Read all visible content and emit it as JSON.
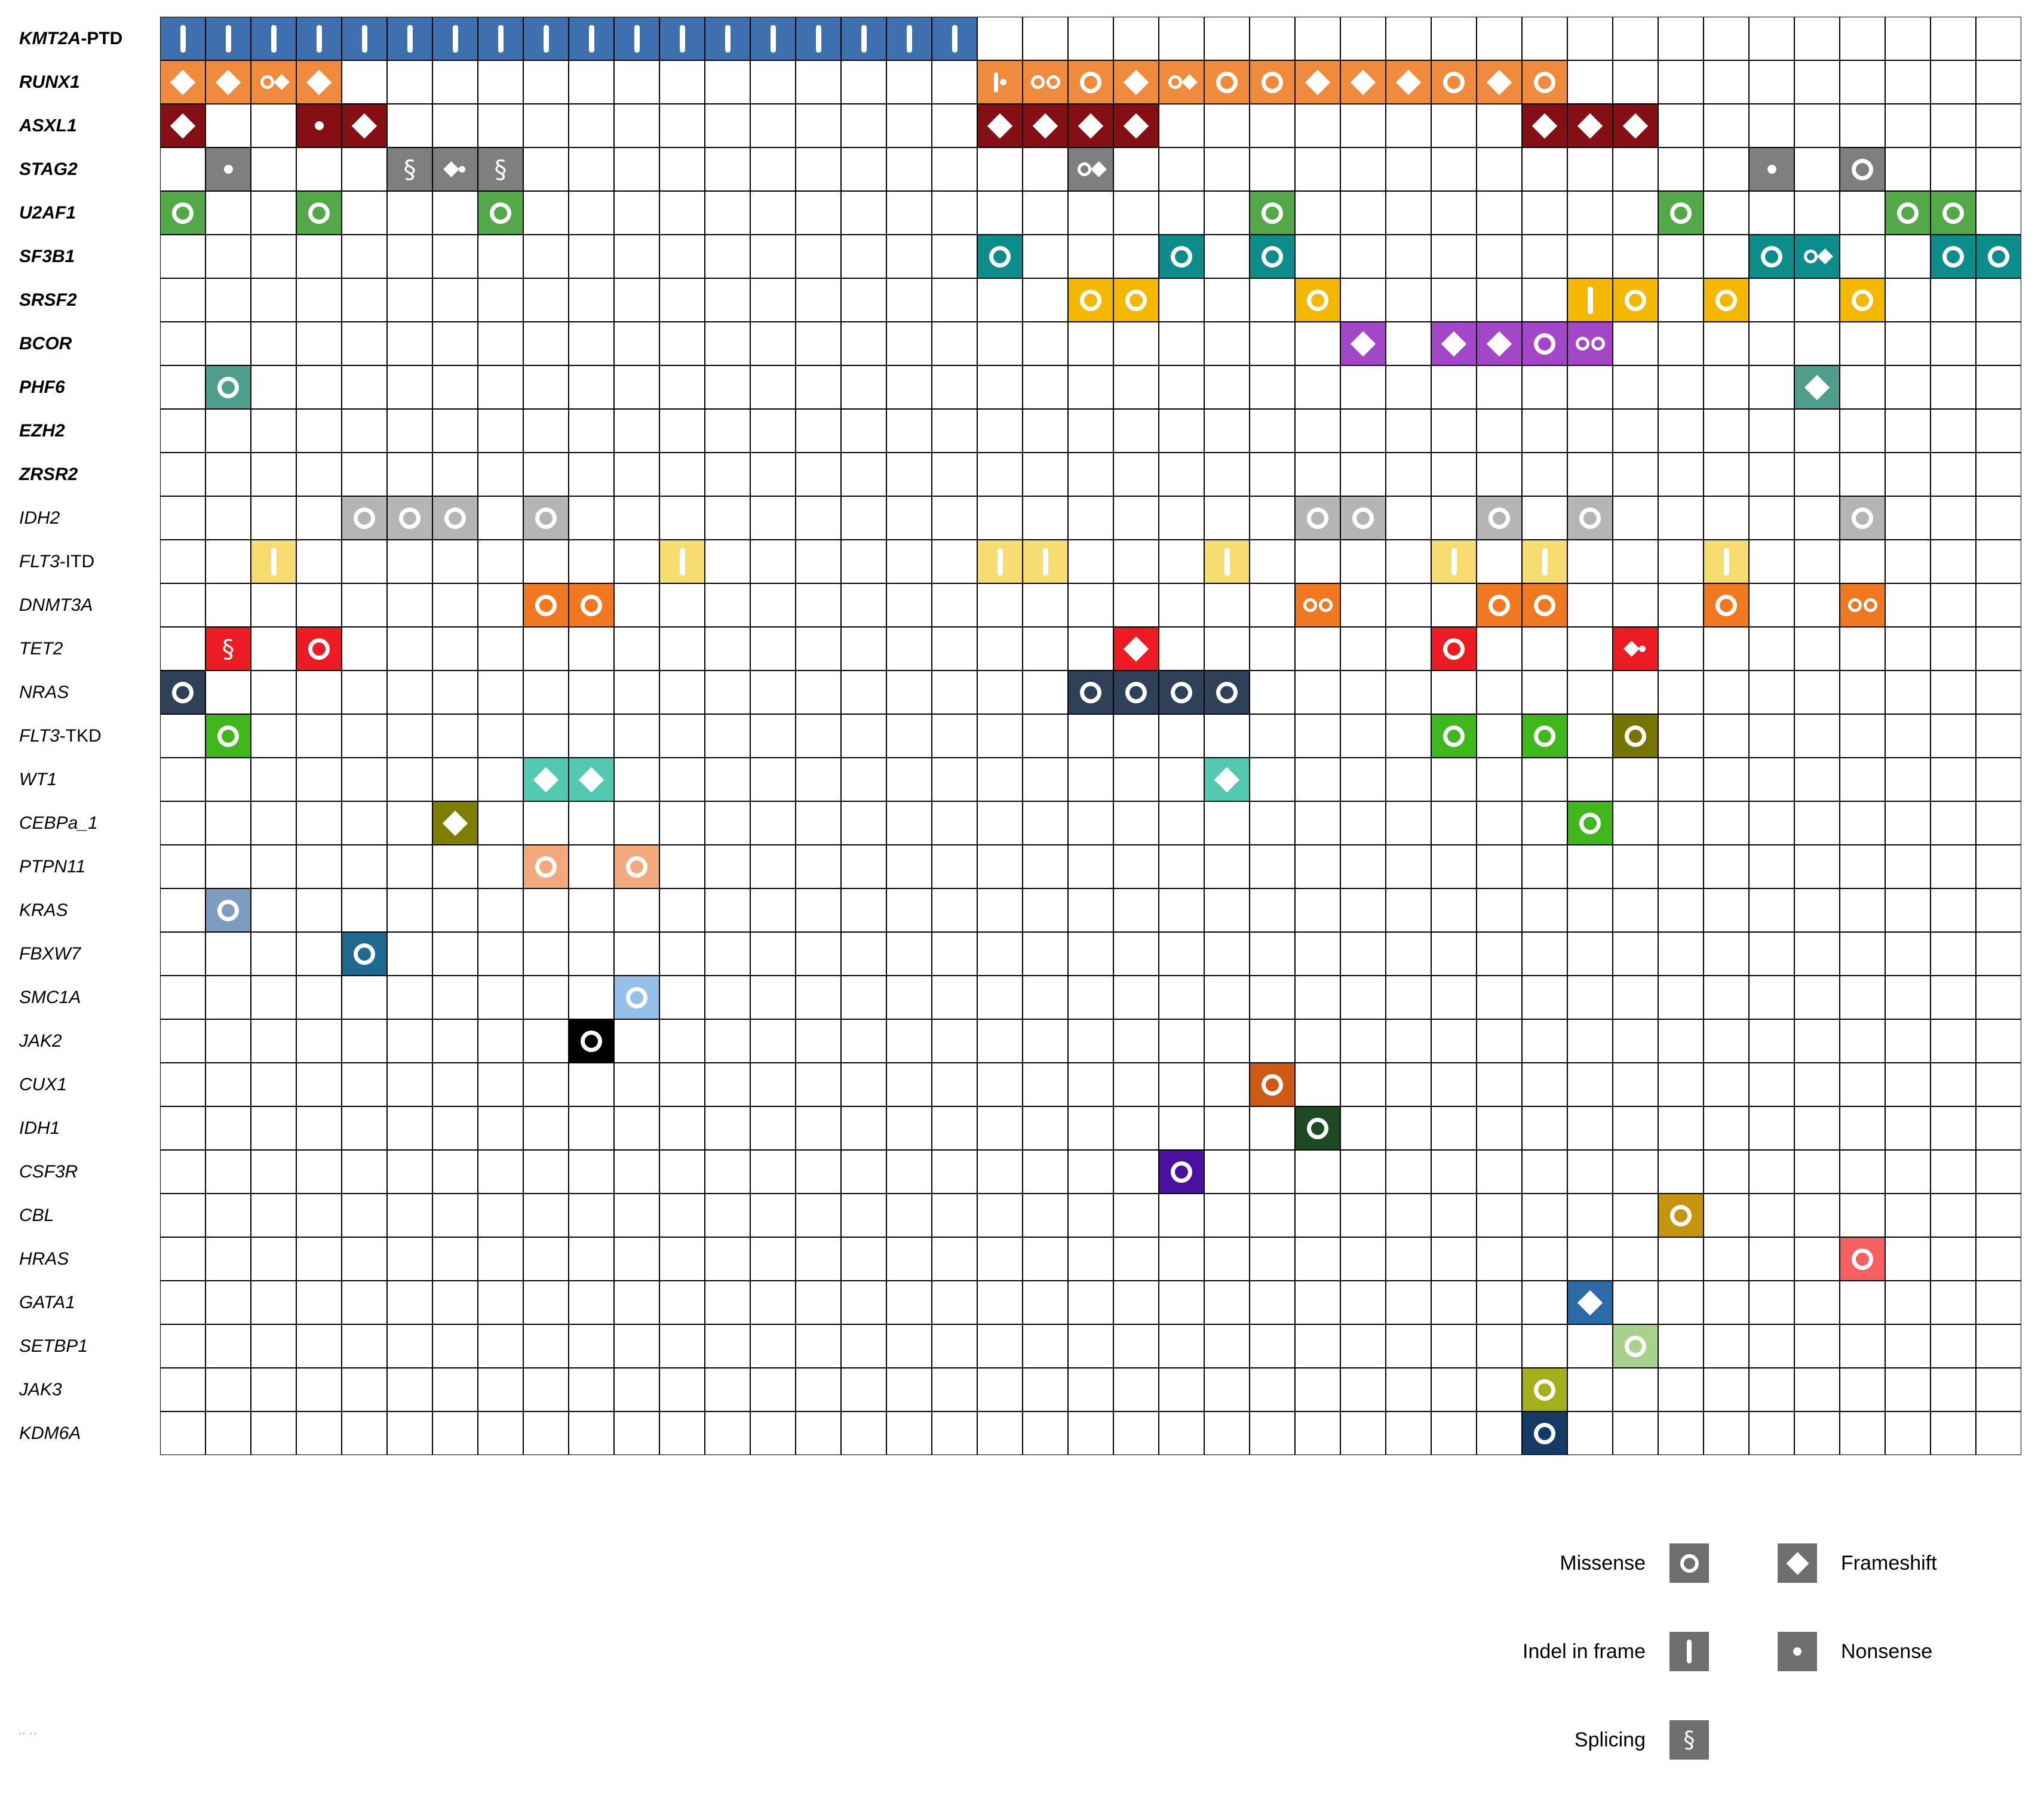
{
  "chart_data": {
    "type": "heatmap",
    "subtype": "oncoprint-mutation-matrix",
    "n_samples": 41,
    "mutation_types": {
      "missense": "white circle outline",
      "frameshift": "white filled diamond",
      "indel": "white vertical bar (indel in frame)",
      "nonsense": "white filled dot",
      "splicing": "white section sign"
    },
    "genes": [
      {
        "name": "KMT2A-PTD",
        "main": "KMT2A",
        "suffix": "-PTD",
        "bold": true,
        "color": "#3e6fae",
        "cells": [
          [
            1,
            "indel"
          ],
          [
            2,
            "indel"
          ],
          [
            3,
            "indel"
          ],
          [
            4,
            "indel"
          ],
          [
            5,
            "indel"
          ],
          [
            6,
            "indel"
          ],
          [
            7,
            "indel"
          ],
          [
            8,
            "indel"
          ],
          [
            9,
            "indel"
          ],
          [
            10,
            "indel"
          ],
          [
            11,
            "indel"
          ],
          [
            12,
            "indel"
          ],
          [
            13,
            "indel"
          ],
          [
            14,
            "indel"
          ],
          [
            15,
            "indel"
          ],
          [
            16,
            "indel"
          ],
          [
            17,
            "indel"
          ],
          [
            18,
            "indel"
          ]
        ]
      },
      {
        "name": "RUNX1",
        "main": "RUNX1",
        "suffix": "",
        "bold": true,
        "color": "#f08a3c",
        "cells": [
          [
            1,
            "frameshift"
          ],
          [
            2,
            "frameshift"
          ],
          [
            3,
            "missense+frameshift"
          ],
          [
            4,
            "frameshift"
          ],
          [
            19,
            "indel+nonsense"
          ],
          [
            20,
            "missense+missense"
          ],
          [
            21,
            "missense"
          ],
          [
            22,
            "frameshift"
          ],
          [
            23,
            "missense+frameshift"
          ],
          [
            24,
            "missense"
          ],
          [
            25,
            "missense"
          ],
          [
            26,
            "frameshift"
          ],
          [
            27,
            "frameshift"
          ],
          [
            28,
            "frameshift"
          ],
          [
            29,
            "missense"
          ],
          [
            30,
            "frameshift"
          ],
          [
            31,
            "missense"
          ]
        ]
      },
      {
        "name": "ASXL1",
        "main": "ASXL1",
        "suffix": "",
        "bold": true,
        "color": "#841016",
        "cells": [
          [
            1,
            "frameshift"
          ],
          [
            4,
            "nonsense"
          ],
          [
            5,
            "frameshift"
          ],
          [
            19,
            "frameshift"
          ],
          [
            20,
            "frameshift"
          ],
          [
            21,
            "frameshift"
          ],
          [
            22,
            "frameshift"
          ],
          [
            31,
            "frameshift"
          ],
          [
            32,
            "frameshift"
          ],
          [
            33,
            "frameshift"
          ]
        ]
      },
      {
        "name": "STAG2",
        "main": "STAG2",
        "suffix": "",
        "bold": true,
        "color": "#7f7f7f",
        "cells": [
          [
            2,
            "nonsense"
          ],
          [
            6,
            "splicing"
          ],
          [
            7,
            "frameshift+nonsense"
          ],
          [
            8,
            "splicing"
          ],
          [
            21,
            "missense+frameshift"
          ],
          [
            36,
            "nonsense"
          ],
          [
            38,
            "missense"
          ]
        ]
      },
      {
        "name": "U2AF1",
        "main": "U2AF1",
        "suffix": "",
        "bold": true,
        "color": "#53a948",
        "cells": [
          [
            1,
            "missense"
          ],
          [
            4,
            "missense"
          ],
          [
            8,
            "missense"
          ],
          [
            25,
            "missense"
          ],
          [
            34,
            "missense"
          ],
          [
            39,
            "missense"
          ],
          [
            40,
            "missense"
          ]
        ]
      },
      {
        "name": "SF3B1",
        "main": "SF3B1",
        "suffix": "",
        "bold": true,
        "color": "#0d8c8c",
        "cells": [
          [
            19,
            "missense"
          ],
          [
            23,
            "missense"
          ],
          [
            25,
            "missense"
          ],
          [
            36,
            "missense"
          ],
          [
            37,
            "missense+frameshift"
          ],
          [
            40,
            "missense"
          ],
          [
            41,
            "missense"
          ]
        ]
      },
      {
        "name": "SRSF2",
        "main": "SRSF2",
        "suffix": "",
        "bold": true,
        "color": "#f5b800",
        "cells": [
          [
            21,
            "missense"
          ],
          [
            22,
            "missense"
          ],
          [
            26,
            "missense"
          ],
          [
            32,
            "indel"
          ],
          [
            33,
            "missense"
          ],
          [
            35,
            "missense"
          ],
          [
            38,
            "missense"
          ]
        ]
      },
      {
        "name": "BCOR",
        "main": "BCOR",
        "suffix": "",
        "bold": true,
        "color": "#a346c8",
        "cells": [
          [
            27,
            "frameshift"
          ],
          [
            29,
            "frameshift"
          ],
          [
            30,
            "frameshift"
          ],
          [
            31,
            "missense"
          ],
          [
            32,
            "missense+missense"
          ]
        ]
      },
      {
        "name": "PHF6",
        "main": "PHF6",
        "suffix": "",
        "bold": true,
        "color": "#4f9e8c",
        "cells": [
          [
            2,
            "missense"
          ],
          [
            37,
            "frameshift"
          ]
        ]
      },
      {
        "name": "EZH2",
        "main": "EZH2",
        "suffix": "",
        "bold": true,
        "color": "#888888",
        "cells": []
      },
      {
        "name": "ZRSR2",
        "main": "ZRSR2",
        "suffix": "",
        "bold": true,
        "color": "#888888",
        "cells": []
      },
      {
        "name": "IDH2",
        "main": "IDH2",
        "suffix": "",
        "bold": false,
        "color": "#b5b5b5",
        "cells": [
          [
            5,
            "missense"
          ],
          [
            6,
            "missense"
          ],
          [
            7,
            "missense"
          ],
          [
            9,
            "missense"
          ],
          [
            26,
            "missense"
          ],
          [
            27,
            "missense"
          ],
          [
            30,
            "missense"
          ],
          [
            32,
            "missense"
          ],
          [
            38,
            "missense"
          ]
        ]
      },
      {
        "name": "FLT3-ITD",
        "main": "FLT3",
        "suffix": "-ITD",
        "bold": false,
        "color": "#f7dc6f",
        "cells": [
          [
            3,
            "indel"
          ],
          [
            12,
            "indel"
          ],
          [
            19,
            "indel"
          ],
          [
            20,
            "indel"
          ],
          [
            24,
            "indel"
          ],
          [
            29,
            "indel"
          ],
          [
            31,
            "indel"
          ],
          [
            35,
            "indel"
          ]
        ]
      },
      {
        "name": "DNMT3A",
        "main": "DNMT3A",
        "suffix": "",
        "bold": false,
        "color": "#f07820",
        "cells": [
          [
            9,
            "missense"
          ],
          [
            10,
            "missense"
          ],
          [
            26,
            "missense+missense"
          ],
          [
            30,
            "missense"
          ],
          [
            31,
            "missense"
          ],
          [
            35,
            "missense"
          ],
          [
            38,
            "missense+missense"
          ]
        ]
      },
      {
        "name": "TET2",
        "main": "TET2",
        "suffix": "",
        "bold": false,
        "color": "#ed1c24",
        "cells": [
          [
            2,
            "splicing"
          ],
          [
            4,
            "missense"
          ],
          [
            22,
            "frameshift"
          ],
          [
            29,
            "missense"
          ],
          [
            33,
            "frameshift+nonsense"
          ]
        ]
      },
      {
        "name": "NRAS",
        "main": "NRAS",
        "suffix": "",
        "bold": false,
        "color": "#2f4158",
        "cells": [
          [
            1,
            "missense"
          ],
          [
            21,
            "missense"
          ],
          [
            22,
            "missense"
          ],
          [
            23,
            "missense"
          ],
          [
            24,
            "missense"
          ]
        ]
      },
      {
        "name": "FLT3-TKD",
        "main": "FLT3",
        "suffix": "-TKD",
        "bold": false,
        "color": "#41b71e",
        "cells": [
          [
            2,
            "missense"
          ],
          [
            29,
            "missense"
          ],
          [
            31,
            "missense"
          ],
          [
            33,
            "missense",
            "#757500"
          ]
        ]
      },
      {
        "name": "WT1",
        "main": "WT1",
        "suffix": "",
        "bold": false,
        "color": "#52c9b0",
        "cells": [
          [
            9,
            "frameshift"
          ],
          [
            10,
            "frameshift"
          ],
          [
            24,
            "frameshift"
          ]
        ]
      },
      {
        "name": "CEBPa_1",
        "main": "CEBPa_1",
        "suffix": "",
        "bold": false,
        "color": "#7e7e00",
        "cells": [
          [
            7,
            "frameshift"
          ],
          [
            32,
            "missense",
            "#41b71e"
          ]
        ]
      },
      {
        "name": "PTPN11",
        "main": "PTPN11",
        "suffix": "",
        "bold": false,
        "color": "#f2a97c",
        "cells": [
          [
            9,
            "missense"
          ],
          [
            11,
            "missense"
          ]
        ]
      },
      {
        "name": "KRAS",
        "main": "KRAS",
        "suffix": "",
        "bold": false,
        "color": "#7d9cc0",
        "cells": [
          [
            2,
            "missense"
          ]
        ]
      },
      {
        "name": "FBXW7",
        "main": "FBXW7",
        "suffix": "",
        "bold": false,
        "color": "#1d6a8e",
        "cells": [
          [
            5,
            "missense"
          ]
        ]
      },
      {
        "name": "SMC1A",
        "main": "SMC1A",
        "suffix": "",
        "bold": false,
        "color": "#94c0ea",
        "cells": [
          [
            11,
            "missense"
          ]
        ]
      },
      {
        "name": "JAK2",
        "main": "JAK2",
        "suffix": "",
        "bold": false,
        "color": "#000000",
        "cells": [
          [
            10,
            "missense"
          ]
        ]
      },
      {
        "name": "CUX1",
        "main": "CUX1",
        "suffix": "",
        "bold": false,
        "color": "#cf5a14",
        "cells": [
          [
            25,
            "missense"
          ]
        ]
      },
      {
        "name": "IDH1",
        "main": "IDH1",
        "suffix": "",
        "bold": false,
        "color": "#1d4a22",
        "cells": [
          [
            26,
            "missense"
          ]
        ]
      },
      {
        "name": "CSF3R",
        "main": "CSF3R",
        "suffix": "",
        "bold": false,
        "color": "#4a10a0",
        "cells": [
          [
            23,
            "missense"
          ]
        ]
      },
      {
        "name": "CBL",
        "main": "CBL",
        "suffix": "",
        "bold": false,
        "color": "#c59410",
        "cells": [
          [
            34,
            "missense"
          ]
        ]
      },
      {
        "name": "HRAS",
        "main": "HRAS",
        "suffix": "",
        "bold": false,
        "color": "#f76060",
        "cells": [
          [
            38,
            "missense"
          ]
        ]
      },
      {
        "name": "GATA1",
        "main": "GATA1",
        "suffix": "",
        "bold": false,
        "color": "#2d6aa8",
        "cells": [
          [
            32,
            "frameshift"
          ]
        ]
      },
      {
        "name": "SETBP1",
        "main": "SETBP1",
        "suffix": "",
        "bold": false,
        "color": "#a9d18e",
        "cells": [
          [
            33,
            "missense"
          ]
        ]
      },
      {
        "name": "JAK3",
        "main": "JAK3",
        "suffix": "",
        "bold": false,
        "color": "#a3b01c",
        "cells": [
          [
            31,
            "missense"
          ]
        ]
      },
      {
        "name": "KDM6A",
        "main": "KDM6A",
        "suffix": "",
        "bold": false,
        "color": "#143a66",
        "cells": [
          [
            31,
            "missense"
          ]
        ]
      }
    ]
  },
  "legend": {
    "box_color": "#6f6f6f",
    "rows": [
      {
        "left": {
          "label": "Missense",
          "glyph": "missense"
        },
        "right": {
          "label": "Frameshift",
          "glyph": "frameshift"
        }
      },
      {
        "left": {
          "label": "Indel in frame",
          "glyph": "indel"
        },
        "right": {
          "label": "Nonsense",
          "glyph": "nonsense"
        }
      },
      {
        "left": {
          "label": "Splicing",
          "glyph": "splicing"
        }
      }
    ]
  },
  "footnote": "·· ··"
}
